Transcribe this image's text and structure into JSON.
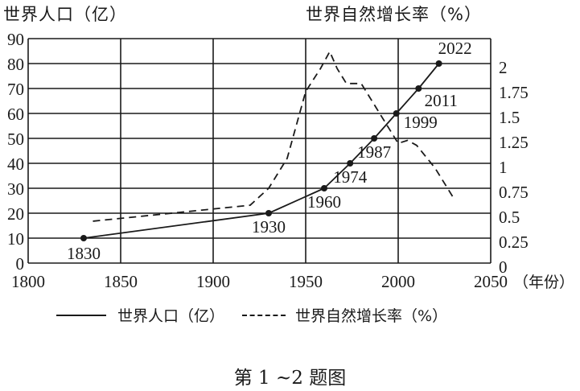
{
  "titles": {
    "left_axis": "世界人口（亿）",
    "right_axis": "世界自然增长率（%）"
  },
  "legend": {
    "population": "世界人口（亿）",
    "growth_rate": "世界自然增长率（%）"
  },
  "caption": "第 1 ~2 题图",
  "x_axis_unit": "（年份）",
  "chart_data": {
    "type": "line",
    "title": "",
    "xlabel": "年份",
    "ylabel": "世界人口（亿）",
    "y2label": "世界自然增长率（%）",
    "xlim": [
      1800,
      2050
    ],
    "ylim": [
      0,
      90
    ],
    "y2lim": [
      0,
      2.25
    ],
    "x_ticks": [
      1800,
      1850,
      1900,
      1950,
      2000,
      2050
    ],
    "y_ticks": [
      0,
      10,
      20,
      30,
      40,
      50,
      60,
      70,
      80,
      90
    ],
    "y2_ticks": [
      "0",
      "0.25",
      "0.5",
      "0.75",
      "1",
      "1.25",
      "1.5",
      "1.75",
      "2"
    ],
    "grid": true,
    "legend_position": "bottom",
    "series": [
      {
        "name": "世界人口（亿）",
        "style": "solid",
        "axis": "left",
        "markers": true,
        "x": [
          1830,
          1930,
          1960,
          1974,
          1987,
          1999,
          2011,
          2022
        ],
        "values": [
          10,
          20,
          30,
          40,
          50,
          60,
          70,
          80
        ],
        "point_labels": [
          "1830",
          "1930",
          "1960",
          "1974",
          "1987",
          "1999",
          "2011",
          "2022"
        ]
      },
      {
        "name": "世界自然增长率（%）",
        "style": "dashed",
        "axis": "right",
        "markers": false,
        "x": [
          1835,
          1920,
          1930,
          1940,
          1950,
          1958,
          1963,
          1967,
          1972,
          1980,
          1990,
          2000,
          2005,
          2010,
          2020,
          2030
        ],
        "values": [
          0.42,
          0.58,
          0.75,
          1.05,
          1.72,
          1.95,
          2.12,
          1.95,
          1.8,
          1.8,
          1.5,
          1.2,
          1.23,
          1.18,
          0.95,
          0.65
        ]
      }
    ]
  }
}
